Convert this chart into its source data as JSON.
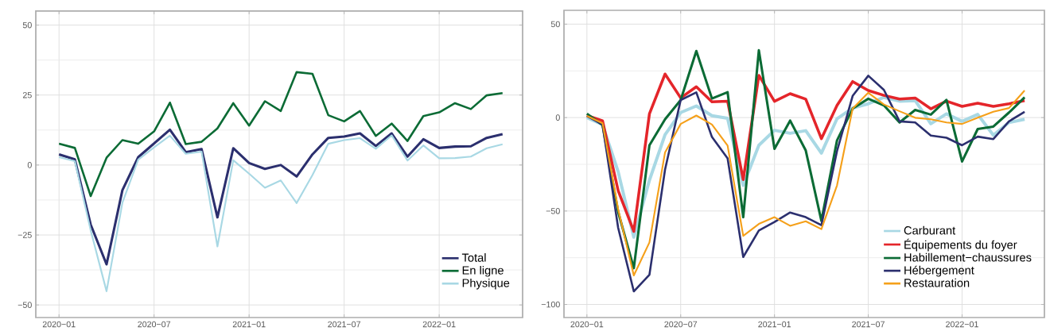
{
  "chart_data": [
    {
      "type": "line",
      "grid": true,
      "legend": "bottom right",
      "x": [
        "2020-01",
        "2020-02",
        "2020-03",
        "2020-04",
        "2020-05",
        "2020-06",
        "2020-07",
        "2020-08",
        "2020-09",
        "2020-10",
        "2020-11",
        "2020-12",
        "2021-01",
        "2021-02",
        "2021-03",
        "2021-04",
        "2021-05",
        "2021-06",
        "2021-07",
        "2021-08",
        "2021-09",
        "2021-10",
        "2021-11",
        "2021-12",
        "2022-01",
        "2022-02",
        "2022-03",
        "2022-04",
        "2022-05"
      ],
      "xlim": [
        "2019-11-17",
        "2022-06-09"
      ],
      "xticks": [
        {
          "value": "2020-01",
          "label": "2020−01"
        },
        {
          "value": "2020-07",
          "label": "2020−07"
        },
        {
          "value": "2021-01",
          "label": "2021−01"
        },
        {
          "value": "2021-07",
          "label": "2021−07"
        },
        {
          "value": "2022-01",
          "label": "2022−01"
        }
      ],
      "ylim": [
        -54.5,
        55
      ],
      "yticks": [
        {
          "value": -50,
          "label": "−50"
        },
        {
          "value": -25,
          "label": "−25"
        },
        0,
        25,
        50
      ],
      "series": [
        {
          "name": "Total",
          "color": "#2b2f6e",
          "values": [
            3.8,
            2.0,
            -21.3,
            -35.5,
            -9.0,
            2.8,
            7.7,
            12.6,
            4.6,
            5.7,
            -18.7,
            6.0,
            0.7,
            -1.4,
            0,
            -4.1,
            3.8,
            9.7,
            10.2,
            11.3,
            6.8,
            11.3,
            3.0,
            9.2,
            6.1,
            6.6,
            6.7,
            9.7,
            11.0
          ]
        },
        {
          "name": "En ligne",
          "color": "#0b6b35",
          "values": [
            7.6,
            6.1,
            -11.1,
            2.6,
            8.9,
            7.6,
            12.0,
            22.3,
            7.5,
            8.3,
            13.1,
            22.1,
            14.1,
            22.8,
            19.3,
            33.2,
            32.6,
            17.8,
            15.6,
            19.3,
            10.4,
            14.8,
            8.6,
            17.5,
            18.8,
            22.1,
            20.0,
            24.9,
            25.7
          ]
        },
        {
          "name": "Physique",
          "color": "#a8d8e4",
          "values": [
            2.8,
            1.4,
            -23.4,
            -45.1,
            -13.5,
            1.9,
            6.3,
            10.5,
            4.0,
            4.8,
            -29.1,
            1.7,
            -3.1,
            -8.1,
            -5.5,
            -13.6,
            -3.6,
            7.6,
            8.9,
            9.6,
            5.8,
            10.6,
            1.6,
            7.0,
            2.4,
            2.5,
            3.0,
            6.0,
            7.4
          ]
        }
      ]
    },
    {
      "type": "line",
      "grid": true,
      "legend": "bottom right",
      "x": [
        "2020-01",
        "2020-02",
        "2020-03",
        "2020-04",
        "2020-05",
        "2020-06",
        "2020-07",
        "2020-08",
        "2020-09",
        "2020-10",
        "2020-11",
        "2020-12",
        "2021-01",
        "2021-02",
        "2021-03",
        "2021-04",
        "2021-05",
        "2021-06",
        "2021-07",
        "2021-08",
        "2021-09",
        "2021-10",
        "2021-11",
        "2021-12",
        "2022-01",
        "2022-02",
        "2022-03",
        "2022-04",
        "2022-05"
      ],
      "xlim": [
        "2019-11-17",
        "2022-06-09"
      ],
      "xticks": [
        {
          "value": "2020-01",
          "label": "2020−01"
        },
        {
          "value": "2020-07",
          "label": "2020−07"
        },
        {
          "value": "2021-01",
          "label": "2021−01"
        },
        {
          "value": "2021-07",
          "label": "2021−07"
        },
        {
          "value": "2022-01",
          "label": "2022−01"
        }
      ],
      "ylim": [
        -107,
        57.4
      ],
      "yticks": [
        {
          "value": -100,
          "label": "−100"
        },
        {
          "value": -50,
          "label": "−50"
        },
        0,
        50
      ],
      "series": [
        {
          "name": "Carburant",
          "color": "#a8d8e4",
          "values": [
            0,
            -3.7,
            -29,
            -64,
            -33.5,
            -9.1,
            2.7,
            6.2,
            1.0,
            -0.4,
            -36.3,
            -14.8,
            -6.8,
            -8.4,
            -7.0,
            -19.0,
            -0.6,
            5.1,
            7.4,
            10.8,
            8.8,
            9.1,
            -3.3,
            2.0,
            -2.0,
            1.7,
            -9.4,
            -2.6,
            -0.9
          ]
        },
        {
          "name": "Équipements du foyer",
          "color": "#e4252a",
          "values": [
            1.1,
            -1.7,
            -39.1,
            -60.9,
            2.0,
            23.3,
            10.5,
            16.5,
            8.4,
            8.8,
            -33.2,
            22.6,
            8.7,
            12.8,
            9.9,
            -11.3,
            6.5,
            19.3,
            14.5,
            11.9,
            9.9,
            10.5,
            4.7,
            8.8,
            6.0,
            7.7,
            6.0,
            7.4,
            9.1
          ]
        },
        {
          "name": "Habillement−chaussures",
          "color": "#0b6b35",
          "values": [
            2.1,
            -4.0,
            -50.5,
            -80.6,
            -14.8,
            -0.9,
            9.4,
            35.6,
            10.2,
            13.6,
            -53.3,
            36.0,
            -16.7,
            -1.6,
            -17.6,
            -55.2,
            -12.2,
            4.8,
            10.1,
            6.5,
            -2.6,
            4.1,
            1.6,
            9.5,
            -23.5,
            -6.1,
            -4.8,
            2.7,
            10.8
          ]
        },
        {
          "name": "Hébergement",
          "color": "#2b2f6e",
          "values": [
            0.9,
            -3.7,
            -59,
            -93.0,
            -84.1,
            -27.8,
            9.4,
            13.5,
            -10.4,
            -21.8,
            -74.6,
            -60.4,
            -55.9,
            -50.8,
            -53.3,
            -57.6,
            -17.9,
            11.6,
            22.4,
            14.8,
            -2.0,
            -2.6,
            -9.6,
            -10.8,
            -14.8,
            -10.2,
            -11.5,
            -2.0,
            3.1
          ]
        },
        {
          "name": "Restauration",
          "color": "#f5a01a",
          "values": [
            0.9,
            -3.0,
            -49,
            -84.5,
            -66.8,
            -18.6,
            -3.4,
            1.1,
            -3.7,
            -15.0,
            -63.3,
            -56.9,
            -53.3,
            -57.9,
            -55.5,
            -59.7,
            -36.3,
            4.8,
            13.3,
            7.0,
            3.4,
            -0.1,
            -0.9,
            -2.6,
            -3.4,
            -0.1,
            3.1,
            5.1,
            14.5
          ]
        }
      ]
    }
  ]
}
